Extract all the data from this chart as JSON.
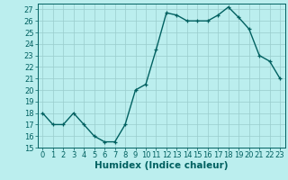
{
  "x": [
    0,
    1,
    2,
    3,
    4,
    5,
    6,
    7,
    8,
    9,
    10,
    11,
    12,
    13,
    14,
    15,
    16,
    17,
    18,
    19,
    20,
    21,
    22,
    23
  ],
  "y": [
    18,
    17,
    17,
    18,
    17,
    16,
    15.5,
    15.5,
    17,
    20,
    20.5,
    23.5,
    26.7,
    26.5,
    26,
    26,
    26,
    26.5,
    27.2,
    26.3,
    25.3,
    23,
    22.5,
    21
  ],
  "line_color": "#006060",
  "marker_color": "#006060",
  "bg_color": "#bbeeee",
  "grid_color": "#99cccc",
  "xlabel": "Humidex (Indice chaleur)",
  "xlim": [
    -0.5,
    23.5
  ],
  "ylim": [
    15,
    27.5
  ],
  "yticks": [
    15,
    16,
    17,
    18,
    19,
    20,
    21,
    22,
    23,
    24,
    25,
    26,
    27
  ],
  "xticks": [
    0,
    1,
    2,
    3,
    4,
    5,
    6,
    7,
    8,
    9,
    10,
    11,
    12,
    13,
    14,
    15,
    16,
    17,
    18,
    19,
    20,
    21,
    22,
    23
  ],
  "xlabel_fontsize": 7.5,
  "tick_fontsize": 6,
  "line_width": 1.0,
  "marker_size": 3.5
}
